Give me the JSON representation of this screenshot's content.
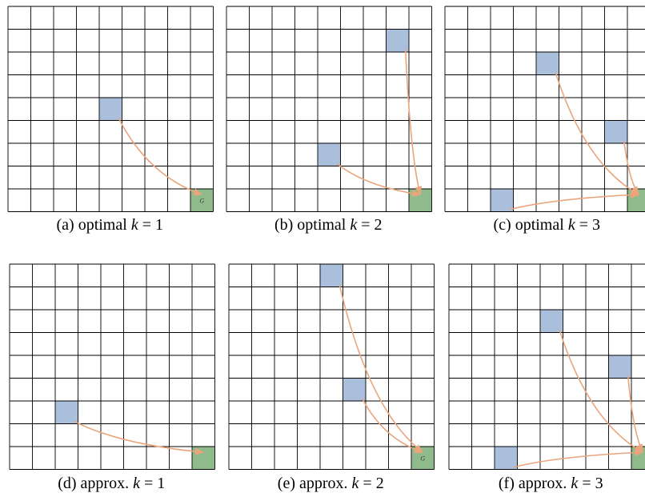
{
  "grid": {
    "rows": 9,
    "cols": 9
  },
  "colors": {
    "agent": "#a9bfdc",
    "goal": "#8fbb8c",
    "arrow": "#eaa57c",
    "line": "#000000"
  },
  "panels": [
    {
      "id": "a",
      "caption": {
        "prefix": "(a) optimal ",
        "var": "k",
        "rel": " = 1"
      },
      "agents": [
        {
          "row": 4,
          "col": 4
        }
      ],
      "goal": {
        "row": 8,
        "col": 8,
        "label": "G"
      }
    },
    {
      "id": "b",
      "caption": {
        "prefix": "(b) optimal ",
        "var": "k",
        "rel": " = 2"
      },
      "agents": [
        {
          "row": 1,
          "col": 7
        },
        {
          "row": 6,
          "col": 4
        }
      ],
      "goal": {
        "row": 8,
        "col": 8,
        "label": ""
      }
    },
    {
      "id": "c",
      "caption": {
        "prefix": "(c) optimal ",
        "var": "k",
        "rel": " = 3"
      },
      "agents": [
        {
          "row": 2,
          "col": 4
        },
        {
          "row": 5,
          "col": 7
        },
        {
          "row": 8,
          "col": 2
        }
      ],
      "goal": {
        "row": 8,
        "col": 8,
        "label": ""
      }
    },
    {
      "id": "d",
      "caption": {
        "prefix": "(d) approx. ",
        "var": "k",
        "rel": " = 1"
      },
      "agents": [
        {
          "row": 6,
          "col": 2
        }
      ],
      "goal": {
        "row": 8,
        "col": 8,
        "label": ""
      }
    },
    {
      "id": "e",
      "caption": {
        "prefix": "(e) approx. ",
        "var": "k",
        "rel": " = 2"
      },
      "agents": [
        {
          "row": 0,
          "col": 4
        },
        {
          "row": 5,
          "col": 5
        }
      ],
      "goal": {
        "row": 8,
        "col": 8,
        "label": "G"
      }
    },
    {
      "id": "f",
      "caption": {
        "prefix": "(f) approx. ",
        "var": "k",
        "rel": " = 3"
      },
      "agents": [
        {
          "row": 2,
          "col": 4
        },
        {
          "row": 4,
          "col": 7
        },
        {
          "row": 8,
          "col": 2
        }
      ],
      "goal": {
        "row": 8,
        "col": 8,
        "label": ""
      }
    }
  ]
}
